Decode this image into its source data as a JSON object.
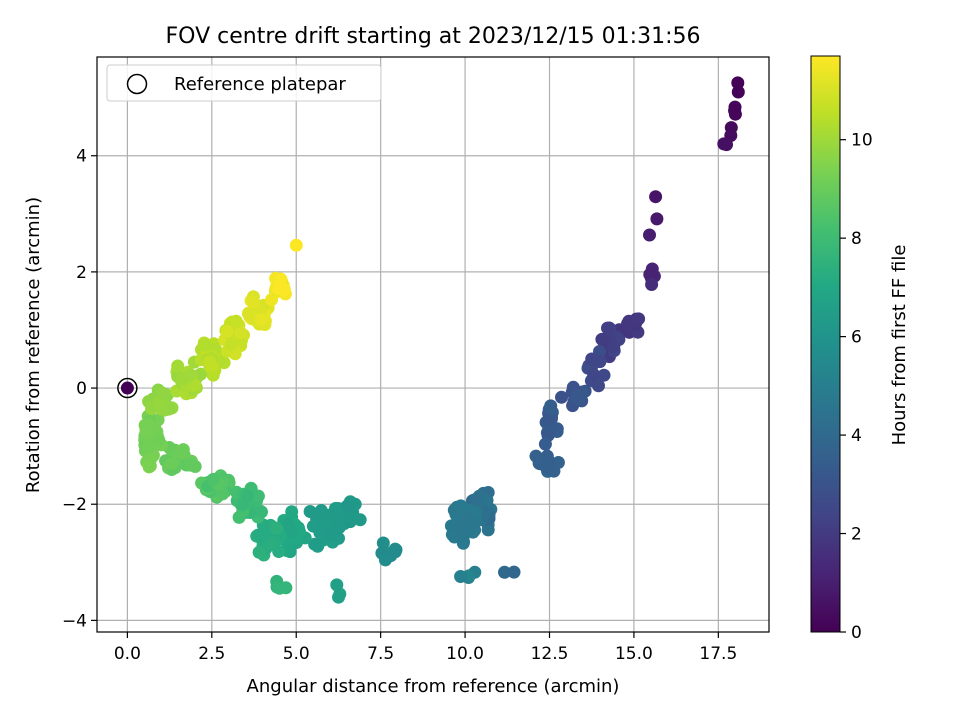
{
  "chart_data": {
    "type": "scatter",
    "title": "FOV centre drift starting at 2023/12/15 01:31:56",
    "xlabel": "Angular distance from reference (arcmin)",
    "ylabel": "Rotation from reference (arcmin)",
    "xlim": [
      -0.9,
      19.0
    ],
    "ylim": [
      -4.2,
      5.7
    ],
    "x_ticks": [
      0.0,
      2.5,
      5.0,
      7.5,
      10.0,
      12.5,
      15.0,
      17.5
    ],
    "x_tick_labels": [
      "0.0",
      "2.5",
      "5.0",
      "7.5",
      "10.0",
      "12.5",
      "15.0",
      "17.5"
    ],
    "y_ticks": [
      -4,
      -2,
      0,
      2,
      4
    ],
    "y_tick_labels": [
      "−4",
      "−2",
      "0",
      "2",
      "4"
    ],
    "grid": true,
    "legend": {
      "position": "top-left",
      "label": "Reference platepar"
    },
    "colorbar": {
      "label": "Hours from first FF file",
      "colormap": "viridis",
      "range": [
        0,
        11.7
      ],
      "ticks": [
        0,
        2,
        4,
        6,
        8,
        10
      ],
      "tick_labels": [
        "0",
        "2",
        "4",
        "6",
        "8",
        "10"
      ]
    },
    "reference_point": {
      "x": 0.0,
      "y": 0.0
    },
    "anchors": [
      {
        "t": 0.0,
        "x": 18.0,
        "y": 5.2,
        "sx": 0.15,
        "sy": 0.15,
        "n": 2
      },
      {
        "t": 0.1,
        "x": 17.95,
        "y": 4.8,
        "sx": 0.12,
        "sy": 0.1,
        "n": 3
      },
      {
        "t": 0.25,
        "x": 17.85,
        "y": 4.5,
        "sx": 0.15,
        "sy": 0.15,
        "n": 2
      },
      {
        "t": 0.4,
        "x": 17.75,
        "y": 4.2,
        "sx": 0.1,
        "sy": 0.1,
        "n": 2
      },
      {
        "t": 0.6,
        "x": 15.6,
        "y": 3.3,
        "sx": 0.08,
        "sy": 0.08,
        "n": 1
      },
      {
        "t": 0.75,
        "x": 15.65,
        "y": 2.9,
        "sx": 0.06,
        "sy": 0.06,
        "n": 1
      },
      {
        "t": 0.85,
        "x": 15.45,
        "y": 2.65,
        "sx": 0.06,
        "sy": 0.06,
        "n": 1
      },
      {
        "t": 1.0,
        "x": 15.5,
        "y": 2.0,
        "sx": 0.1,
        "sy": 0.15,
        "n": 4
      },
      {
        "t": 1.3,
        "x": 15.5,
        "y": 1.75,
        "sx": 0.08,
        "sy": 0.08,
        "n": 1
      },
      {
        "t": 1.7,
        "x": 14.9,
        "y": 1.1,
        "sx": 0.3,
        "sy": 0.18,
        "n": 14
      },
      {
        "t": 2.0,
        "x": 14.3,
        "y": 0.8,
        "sx": 0.3,
        "sy": 0.25,
        "n": 16
      },
      {
        "t": 2.4,
        "x": 13.9,
        "y": 0.3,
        "sx": 0.35,
        "sy": 0.3,
        "n": 12
      },
      {
        "t": 2.8,
        "x": 13.2,
        "y": -0.2,
        "sx": 0.35,
        "sy": 0.25,
        "n": 10
      },
      {
        "t": 3.2,
        "x": 12.55,
        "y": -0.6,
        "sx": 0.25,
        "sy": 0.35,
        "n": 18
      },
      {
        "t": 3.5,
        "x": 12.5,
        "y": -1.3,
        "sx": 0.25,
        "sy": 0.25,
        "n": 12
      },
      {
        "t": 3.8,
        "x": 11.2,
        "y": -3.2,
        "sx": 0.2,
        "sy": 0.1,
        "n": 2
      },
      {
        "t": 4.0,
        "x": 10.5,
        "y": -2.1,
        "sx": 0.35,
        "sy": 0.3,
        "n": 55
      },
      {
        "t": 4.6,
        "x": 10.0,
        "y": -2.35,
        "sx": 0.4,
        "sy": 0.3,
        "n": 55
      },
      {
        "t": 4.8,
        "x": 10.3,
        "y": -3.3,
        "sx": 0.4,
        "sy": 0.15,
        "n": 4
      },
      {
        "t": 5.5,
        "x": 7.8,
        "y": -2.85,
        "sx": 0.35,
        "sy": 0.2,
        "n": 8
      },
      {
        "t": 6.0,
        "x": 6.6,
        "y": -2.2,
        "sx": 0.35,
        "sy": 0.2,
        "n": 22
      },
      {
        "t": 6.3,
        "x": 5.8,
        "y": -2.4,
        "sx": 0.45,
        "sy": 0.3,
        "n": 35
      },
      {
        "t": 6.5,
        "x": 6.2,
        "y": -3.5,
        "sx": 0.25,
        "sy": 0.2,
        "n": 3
      },
      {
        "t": 6.8,
        "x": 4.8,
        "y": -2.5,
        "sx": 0.4,
        "sy": 0.3,
        "n": 35
      },
      {
        "t": 7.1,
        "x": 4.2,
        "y": -2.6,
        "sx": 0.4,
        "sy": 0.35,
        "n": 30
      },
      {
        "t": 7.5,
        "x": 4.5,
        "y": -3.4,
        "sx": 0.3,
        "sy": 0.15,
        "n": 4
      },
      {
        "t": 7.7,
        "x": 3.6,
        "y": -2.0,
        "sx": 0.4,
        "sy": 0.25,
        "n": 28
      },
      {
        "t": 8.2,
        "x": 2.6,
        "y": -1.7,
        "sx": 0.4,
        "sy": 0.2,
        "n": 28
      },
      {
        "t": 8.7,
        "x": 1.6,
        "y": -1.2,
        "sx": 0.45,
        "sy": 0.2,
        "n": 28
      },
      {
        "t": 9.1,
        "x": 0.7,
        "y": -0.8,
        "sx": 0.3,
        "sy": 0.3,
        "n": 30
      },
      {
        "t": 9.3,
        "x": 0.6,
        "y": -1.3,
        "sx": 0.15,
        "sy": 0.1,
        "n": 4
      },
      {
        "t": 9.6,
        "x": 1.0,
        "y": -0.2,
        "sx": 0.35,
        "sy": 0.2,
        "n": 30
      },
      {
        "t": 9.9,
        "x": 1.8,
        "y": 0.1,
        "sx": 0.35,
        "sy": 0.3,
        "n": 30
      },
      {
        "t": 10.3,
        "x": 2.5,
        "y": 0.5,
        "sx": 0.3,
        "sy": 0.3,
        "n": 30
      },
      {
        "t": 10.6,
        "x": 3.2,
        "y": 0.9,
        "sx": 0.3,
        "sy": 0.25,
        "n": 30
      },
      {
        "t": 11.0,
        "x": 3.9,
        "y": 1.3,
        "sx": 0.3,
        "sy": 0.25,
        "n": 30
      },
      {
        "t": 11.3,
        "x": 4.5,
        "y": 1.7,
        "sx": 0.25,
        "sy": 0.2,
        "n": 18
      },
      {
        "t": 11.7,
        "x": 5.0,
        "y": 2.45,
        "sx": 0.05,
        "sy": 0.05,
        "n": 1
      }
    ]
  }
}
